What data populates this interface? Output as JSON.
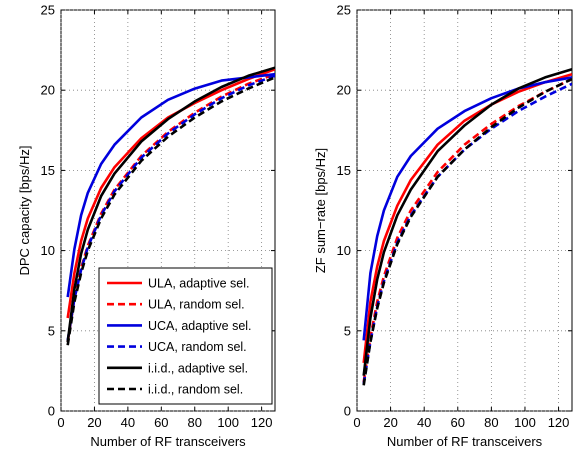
{
  "chart_data": [
    {
      "type": "line",
      "title": "",
      "xlabel": "Number of RF transceivers",
      "ylabel": "DPC capacity [bps/Hz]",
      "xlim": [
        0,
        128
      ],
      "ylim": [
        0,
        25
      ],
      "xticks": [
        "0",
        "20",
        "40",
        "60",
        "80",
        "100",
        "120"
      ],
      "yticks": [
        "0",
        "5",
        "10",
        "15",
        "20",
        "25"
      ],
      "grid": true,
      "legend_position": "bottom-right",
      "x": [
        4,
        8,
        12,
        16,
        24,
        32,
        48,
        64,
        80,
        96,
        112,
        128
      ],
      "series": [
        {
          "name": "ULA, adaptive sel.",
          "color": "#ff0000",
          "dash": "solid",
          "values": [
            5.8,
            8.6,
            10.6,
            12.0,
            13.9,
            15.2,
            17.0,
            18.3,
            19.2,
            20.0,
            20.7,
            21.3
          ]
        },
        {
          "name": "ULA, random sel.",
          "color": "#ff0000",
          "dash": "dashed",
          "values": [
            4.3,
            7.0,
            8.9,
            10.3,
            12.3,
            13.8,
            15.9,
            17.4,
            18.6,
            19.6,
            20.4,
            21.0
          ]
        },
        {
          "name": "UCA, adaptive sel.",
          "color": "#0000dd",
          "dash": "solid",
          "values": [
            7.1,
            10.1,
            12.2,
            13.6,
            15.4,
            16.6,
            18.3,
            19.4,
            20.1,
            20.6,
            20.8,
            21.0
          ]
        },
        {
          "name": "UCA, random sel.",
          "color": "#0000dd",
          "dash": "dashed",
          "values": [
            4.4,
            7.0,
            8.8,
            10.2,
            12.2,
            13.7,
            15.8,
            17.3,
            18.5,
            19.5,
            20.3,
            20.9
          ]
        },
        {
          "name": "i.i.d., adaptive sel.",
          "color": "#000000",
          "dash": "solid",
          "values": [
            4.3,
            7.6,
            9.8,
            11.3,
            13.4,
            14.8,
            16.8,
            18.2,
            19.3,
            20.2,
            20.9,
            21.4
          ]
        },
        {
          "name": "i.i.d., random sel.",
          "color": "#000000",
          "dash": "dashed",
          "values": [
            4.1,
            6.8,
            8.6,
            10.0,
            12.0,
            13.5,
            15.6,
            17.1,
            18.3,
            19.3,
            20.1,
            20.8
          ]
        }
      ]
    },
    {
      "type": "line",
      "title": "",
      "xlabel": "Number of RF transceivers",
      "ylabel": "ZF sum−rate [bps/Hz]",
      "xlim": [
        0,
        128
      ],
      "ylim": [
        0,
        25
      ],
      "xticks": [
        "0",
        "20",
        "40",
        "60",
        "80",
        "100",
        "120"
      ],
      "yticks": [
        "0",
        "5",
        "10",
        "15",
        "20",
        "25"
      ],
      "grid": true,
      "x": [
        4,
        8,
        12,
        16,
        24,
        32,
        48,
        64,
        80,
        96,
        112,
        128
      ],
      "series": [
        {
          "name": "ULA, adaptive sel.",
          "color": "#ff0000",
          "dash": "solid",
          "values": [
            3.0,
            6.8,
            9.0,
            10.6,
            12.8,
            14.4,
            16.6,
            18.1,
            19.1,
            19.9,
            20.5,
            21.0
          ]
        },
        {
          "name": "ULA, random sel.",
          "color": "#ff0000",
          "dash": "dashed",
          "values": [
            1.8,
            4.6,
            6.8,
            8.4,
            10.8,
            12.5,
            14.9,
            16.6,
            17.9,
            19.0,
            19.9,
            20.7
          ]
        },
        {
          "name": "UCA, adaptive sel.",
          "color": "#0000dd",
          "dash": "solid",
          "values": [
            4.4,
            8.6,
            10.9,
            12.5,
            14.6,
            15.9,
            17.6,
            18.7,
            19.5,
            20.1,
            20.5,
            20.8
          ]
        },
        {
          "name": "UCA, random sel.",
          "color": "#0000dd",
          "dash": "dashed",
          "values": [
            1.7,
            4.3,
            6.5,
            8.1,
            10.5,
            12.2,
            14.6,
            16.3,
            17.6,
            18.7,
            19.6,
            20.4
          ]
        },
        {
          "name": "i.i.d., adaptive sel.",
          "color": "#000000",
          "dash": "solid",
          "values": [
            2.2,
            5.8,
            8.2,
            9.9,
            12.2,
            13.8,
            16.2,
            17.8,
            19.1,
            20.1,
            20.8,
            21.3
          ]
        },
        {
          "name": "i.i.d., random sel.",
          "color": "#000000",
          "dash": "dashed",
          "values": [
            1.6,
            4.3,
            6.4,
            8.0,
            10.4,
            12.1,
            14.6,
            16.3,
            17.7,
            18.9,
            19.9,
            20.7
          ]
        }
      ]
    }
  ]
}
